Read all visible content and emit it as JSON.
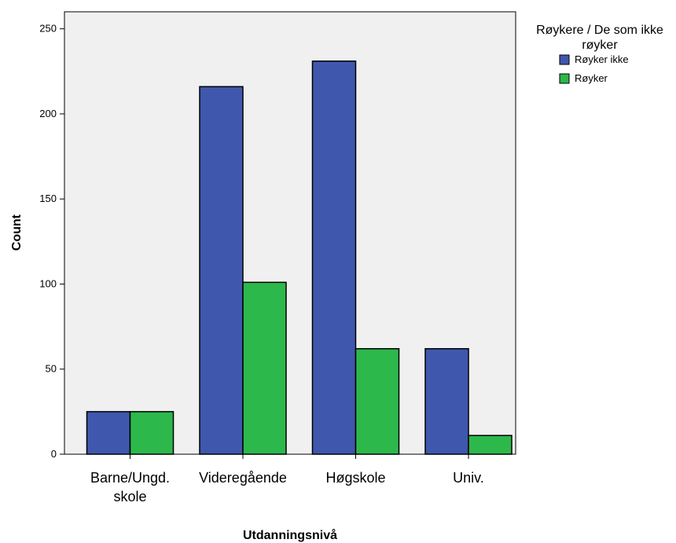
{
  "chart_data": {
    "type": "bar",
    "title": "",
    "xlabel": "Utdanningsnivå",
    "ylabel": "Count",
    "ylim": [
      0,
      260
    ],
    "yticks": [
      0,
      50,
      100,
      150,
      200,
      250
    ],
    "categories": [
      [
        "Barne/Ungd.",
        "skole"
      ],
      [
        "Videregående"
      ],
      [
        "Høgskole"
      ],
      [
        "Univ."
      ]
    ],
    "series": [
      {
        "name": "Røyker ikke",
        "color": "#3f58ad",
        "values": [
          25,
          216,
          231,
          62
        ]
      },
      {
        "name": "Røyker",
        "color": "#2db84b",
        "values": [
          25,
          101,
          62,
          11
        ]
      }
    ],
    "legend": {
      "title_lines": [
        "Røykere / De som ikke",
        "røyker"
      ],
      "position": "right"
    },
    "plot_background": "#f0f0f0",
    "grid": false
  }
}
